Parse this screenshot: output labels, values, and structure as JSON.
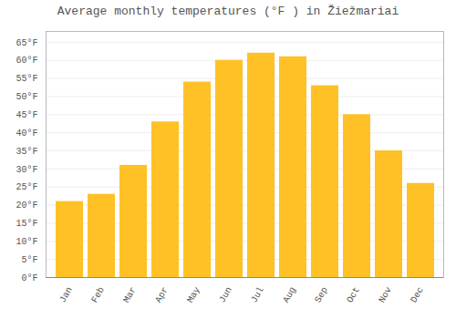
{
  "chart_data": {
    "type": "bar",
    "title": "Average monthly temperatures (°F ) in Žiežmariai",
    "categories": [
      "Jan",
      "Feb",
      "Mar",
      "Apr",
      "May",
      "Jun",
      "Jul",
      "Aug",
      "Sep",
      "Oct",
      "Nov",
      "Dec"
    ],
    "values": [
      21,
      23,
      31,
      43,
      54,
      60,
      62,
      61,
      53,
      45,
      35,
      26
    ],
    "color": "#FFC125",
    "ylim": [
      0,
      68
    ],
    "yticks": [
      {
        "value": 0,
        "label": "0°F"
      },
      {
        "value": 5,
        "label": "5°F"
      },
      {
        "value": 10,
        "label": "10°F"
      },
      {
        "value": 15,
        "label": "15°F"
      },
      {
        "value": 20,
        "label": "20°F"
      },
      {
        "value": 25,
        "label": "25°F"
      },
      {
        "value": 30,
        "label": "30°F"
      },
      {
        "value": 35,
        "label": "35°F"
      },
      {
        "value": 40,
        "label": "40°F"
      },
      {
        "value": 45,
        "label": "45°F"
      },
      {
        "value": 50,
        "label": "50°F"
      },
      {
        "value": 55,
        "label": "55°F"
      },
      {
        "value": 60,
        "label": "60°F"
      },
      {
        "value": 65,
        "label": "65°F"
      }
    ],
    "grid": true
  }
}
